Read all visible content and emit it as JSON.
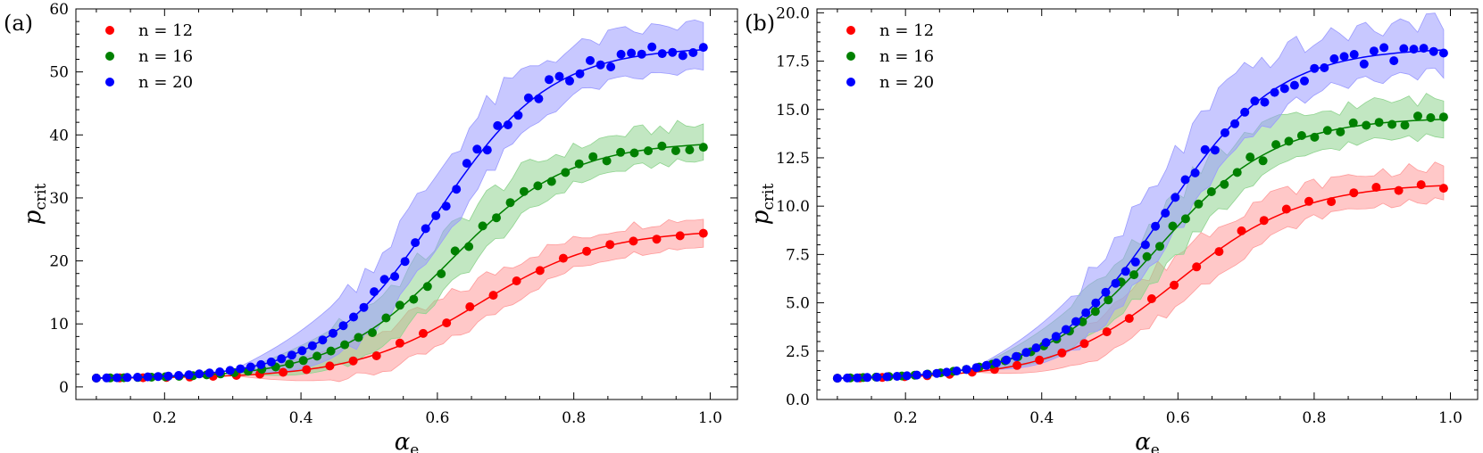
{
  "chart_data": [
    {
      "type": "line",
      "panel_label": "(a)",
      "xlabel": "α",
      "xlabel_sub": "e",
      "ylabel": "p",
      "ylabel_sub": "crit",
      "xlim": [
        0.07,
        1.04
      ],
      "ylim": [
        -2,
        60
      ],
      "xticks": [
        0.2,
        0.4,
        0.6,
        0.8,
        1.0
      ],
      "xtick_labels": [
        "0.2",
        "0.4",
        "0.6",
        "0.8",
        "1.0"
      ],
      "yticks": [
        0,
        10,
        20,
        30,
        40,
        50,
        60
      ],
      "ytick_labels": [
        "0",
        "10",
        "20",
        "30",
        "40",
        "50",
        "60"
      ],
      "legend_position": "top-left",
      "series": [
        {
          "name": "n = 12",
          "color": "#ff0000",
          "fill": "#ff9a9a",
          "plateau": 25.0,
          "mid": 0.66,
          "k": 11.0,
          "pts": 27,
          "x_last": 0.99,
          "band": [
            2.2,
            3.5,
            3.0
          ],
          "max_noise": 0.4
        },
        {
          "name": "n = 16",
          "color": "#008000",
          "fill": "#8fd48f",
          "plateau": 39.0,
          "mid": 0.62,
          "k": 11.5,
          "pts": 45,
          "x_last": 0.99,
          "band": [
            3.0,
            4.5,
            3.2
          ],
          "max_noise": 0.8
        },
        {
          "name": "n = 20",
          "color": "#0000ff",
          "fill": "#9a9aff",
          "plateau": 54.0,
          "mid": 0.6,
          "k": 12.0,
          "pts": 60,
          "x_last": 0.99,
          "band": [
            4.0,
            6.0,
            4.0
          ],
          "max_noise": 1.3
        }
      ]
    },
    {
      "type": "line",
      "panel_label": "(b)",
      "xlabel": "α",
      "xlabel_sub": "e",
      "ylabel": "p",
      "ylabel_sub": "crit",
      "xlim": [
        0.07,
        1.04
      ],
      "ylim": [
        0,
        20.2
      ],
      "xticks": [
        0.2,
        0.4,
        0.6,
        0.8,
        1.0
      ],
      "xtick_labels": [
        "0.2",
        "0.4",
        "0.6",
        "0.8",
        "1.0"
      ],
      "yticks": [
        0,
        2.5,
        5.0,
        7.5,
        10.0,
        12.5,
        15.0,
        17.5,
        20.0
      ],
      "ytick_labels": [
        "0.0",
        "2.5",
        "5.0",
        "7.5",
        "10.0",
        "12.5",
        "15.0",
        "17.5",
        "20.0"
      ],
      "legend_position": "top-left",
      "series": [
        {
          "name": "n = 12",
          "color": "#ff0000",
          "fill": "#ff9a9a",
          "plateau": 11.2,
          "mid": 0.6,
          "k": 11.0,
          "pts": 28,
          "x_last": 0.99,
          "band": [
            0.9,
            1.3,
            1.0
          ],
          "max_noise": 0.2
        },
        {
          "name": "n = 16",
          "color": "#008000",
          "fill": "#8fd48f",
          "plateau": 14.6,
          "mid": 0.57,
          "k": 11.5,
          "pts": 48,
          "x_last": 0.99,
          "band": [
            1.0,
            1.6,
            1.2
          ],
          "max_noise": 0.3
        },
        {
          "name": "n = 20",
          "color": "#0000ff",
          "fill": "#9a9aff",
          "plateau": 18.2,
          "mid": 0.58,
          "k": 12.0,
          "pts": 62,
          "x_last": 0.99,
          "band": [
            1.4,
            2.0,
            1.5
          ],
          "max_noise": 0.4
        }
      ]
    }
  ]
}
